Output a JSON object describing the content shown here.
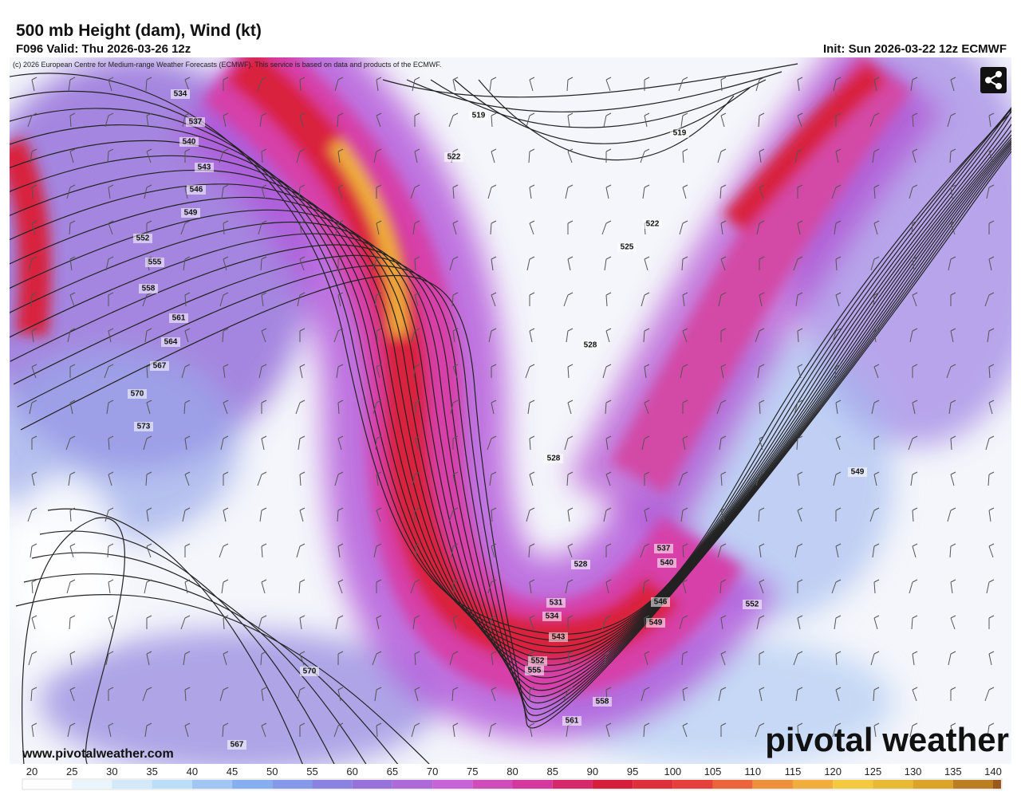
{
  "header": {
    "title": "500 mb Height (dam), Wind (kt)",
    "valid": "F096 Valid: Thu 2026-03-26 12z",
    "init": "Init: Sun 2026-03-22 12z ECMWF",
    "copyright": "(c) 2026 European Centre for Medium-range Weather Forecasts (ECMWF). This service is based on data and products of the ECMWF."
  },
  "contour_labels": [
    534,
    537,
    540,
    543,
    546,
    549,
    552,
    555,
    558,
    561,
    564,
    567,
    570,
    573,
    519,
    522,
    519,
    522,
    525,
    528,
    528,
    528,
    531,
    534,
    537,
    540,
    543,
    546,
    549,
    552,
    555,
    558,
    561,
    567,
    570,
    549,
    552
  ],
  "colorbar": {
    "ticks": [
      20,
      25,
      30,
      35,
      40,
      45,
      50,
      55,
      60,
      65,
      70,
      75,
      80,
      85,
      90,
      95,
      100,
      105,
      110,
      115,
      120,
      125,
      130,
      135,
      140
    ]
  },
  "footer": {
    "website": "www.pivotalweather.com",
    "brand": "pivotal weather"
  }
}
